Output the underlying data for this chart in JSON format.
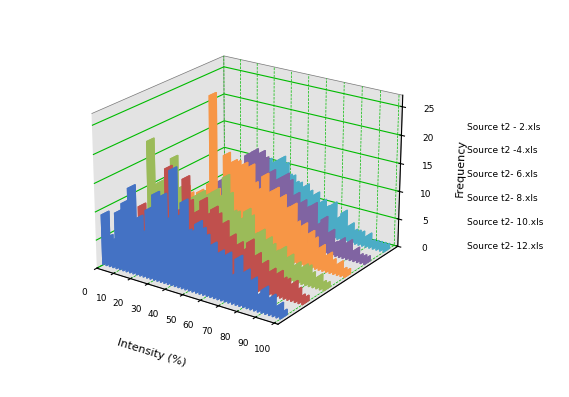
{
  "title": "",
  "xlabel": "Intensity (%)",
  "ylabel": "Frequency",
  "series_labels": [
    "Source t2 - 2.xls",
    "Source t2 -4.xls",
    "Source t2- 6.xls",
    "Source t2- 8.xls",
    "Source t2- 10.xls",
    "Source t2- 12.xls"
  ],
  "series_colors": [
    "#4472c4",
    "#c0504d",
    "#9bbb59",
    "#f79646",
    "#8064a2",
    "#4bacc6"
  ],
  "floor_line_colors": [
    "#4472c4",
    "#c0504d",
    "#9bbb59",
    "#f79646",
    "#8064a2",
    "#4bacc6"
  ],
  "x_bins": [
    0,
    1,
    2,
    3,
    4,
    5,
    6,
    7,
    8,
    9,
    10,
    11,
    12,
    13,
    14,
    15,
    16,
    17,
    18,
    19,
    20,
    21,
    22,
    23,
    24,
    25,
    26,
    27,
    28,
    29,
    30,
    31,
    32,
    33,
    34,
    35,
    36,
    37,
    38,
    39,
    40,
    41,
    42,
    43,
    44,
    45,
    46,
    47,
    48,
    49,
    50,
    51,
    52,
    53,
    54,
    55,
    56,
    57,
    58,
    59,
    60,
    61,
    62,
    63,
    64,
    65,
    66,
    67,
    68,
    69,
    70,
    71,
    72,
    73,
    74,
    75,
    76,
    77,
    78,
    79,
    80,
    81,
    82,
    83,
    84,
    85,
    86,
    87,
    88,
    89,
    90,
    91,
    92,
    93,
    94,
    95,
    96,
    97,
    98,
    99,
    100
  ],
  "zlim": [
    0,
    27
  ],
  "zticks": [
    0,
    5,
    10,
    15,
    20,
    25
  ],
  "xticks": [
    0,
    10,
    20,
    30,
    40,
    50,
    60,
    70,
    80,
    90,
    100
  ],
  "background_color": "#c8c8c8",
  "grid_color": "#00bb00",
  "elev": 22,
  "azim": -55,
  "data": {
    "s1": [
      9,
      0,
      5,
      0,
      4,
      0,
      5,
      0,
      10,
      0,
      8,
      0,
      12,
      0,
      9,
      0,
      15,
      0,
      9,
      0,
      10,
      0,
      7,
      0,
      8,
      0,
      12,
      0,
      8,
      0,
      15,
      0,
      11,
      0,
      15,
      0,
      11,
      0,
      8,
      0,
      20,
      0,
      12,
      0,
      11,
      0,
      15,
      0,
      10,
      0,
      10,
      0,
      9,
      0,
      12,
      0,
      11,
      0,
      10,
      0,
      8,
      0,
      9,
      0,
      6,
      0,
      8,
      0,
      5,
      0,
      8,
      0,
      4,
      0,
      5,
      0,
      8,
      0,
      4,
      0,
      6,
      0,
      3,
      0,
      5,
      0,
      2,
      0,
      3,
      0,
      4,
      0,
      2,
      0,
      3,
      0,
      1,
      0,
      2,
      0,
      1
    ],
    "s2": [
      5,
      0,
      4,
      0,
      1,
      0,
      3,
      0,
      9,
      0,
      4,
      0,
      5,
      0,
      7,
      0,
      9,
      0,
      8,
      0,
      7,
      0,
      4,
      0,
      17,
      0,
      10,
      0,
      9,
      0,
      10,
      0,
      9,
      0,
      16,
      0,
      12,
      0,
      10,
      0,
      10,
      0,
      11,
      0,
      13,
      0,
      9,
      0,
      11,
      0,
      12,
      0,
      11,
      0,
      9,
      0,
      10,
      0,
      7,
      0,
      8,
      0,
      5,
      0,
      7,
      0,
      6,
      0,
      4,
      0,
      8,
      0,
      3,
      0,
      6,
      0,
      4,
      0,
      5,
      0,
      3,
      0,
      4,
      0,
      2,
      0,
      4,
      0,
      3,
      0,
      3,
      0,
      1,
      0,
      3,
      0,
      2,
      0,
      1,
      0,
      1
    ],
    "s3": [
      18,
      0,
      10,
      0,
      5,
      0,
      11,
      0,
      10,
      0,
      3,
      0,
      8,
      0,
      16,
      0,
      9,
      0,
      11,
      0,
      7,
      0,
      6,
      0,
      9,
      0,
      10,
      0,
      9,
      0,
      11,
      0,
      10,
      0,
      11,
      0,
      11,
      0,
      12,
      0,
      11,
      0,
      10,
      0,
      15,
      0,
      12,
      0,
      9,
      0,
      9,
      0,
      8,
      0,
      7,
      0,
      10,
      0,
      9,
      0,
      6,
      0,
      5,
      0,
      7,
      0,
      4,
      0,
      6,
      0,
      5,
      0,
      4,
      0,
      3,
      0,
      5,
      0,
      3,
      0,
      4,
      0,
      2,
      0,
      3,
      0,
      2,
      0,
      3,
      0,
      3,
      0,
      2,
      0,
      1,
      0,
      2,
      0,
      1,
      0,
      1
    ],
    "s4": [
      1,
      0,
      4,
      0,
      3,
      0,
      2,
      0,
      8,
      0,
      7,
      0,
      3,
      0,
      5,
      0,
      8,
      0,
      7,
      0,
      8,
      0,
      10,
      0,
      26,
      0,
      9,
      0,
      8,
      0,
      8,
      0,
      16,
      0,
      11,
      0,
      15,
      0,
      15,
      0,
      9,
      0,
      15,
      0,
      12,
      0,
      15,
      0,
      12,
      0,
      11,
      0,
      9,
      0,
      14,
      0,
      11,
      0,
      9,
      0,
      12,
      0,
      8,
      0,
      11,
      0,
      9,
      0,
      9,
      0,
      10,
      0,
      7,
      0,
      5,
      0,
      7,
      0,
      4,
      0,
      6,
      0,
      5,
      0,
      3,
      0,
      4,
      0,
      2,
      0,
      3,
      0,
      2,
      0,
      1,
      0,
      2,
      0,
      1,
      0,
      1
    ],
    "s5": [
      2,
      0,
      1,
      0,
      2,
      0,
      3,
      0,
      4,
      0,
      5,
      0,
      6,
      0,
      7,
      0,
      8,
      0,
      6,
      0,
      8,
      0,
      7,
      0,
      10,
      0,
      10,
      0,
      8,
      0,
      10,
      0,
      14,
      0,
      13,
      0,
      15,
      0,
      11,
      0,
      15,
      0,
      14,
      0,
      11,
      0,
      12,
      0,
      9,
      0,
      11,
      0,
      9,
      0,
      12,
      0,
      11,
      0,
      8,
      0,
      9,
      0,
      6,
      0,
      8,
      0,
      7,
      0,
      5,
      0,
      8,
      0,
      4,
      0,
      5,
      0,
      6,
      0,
      3,
      0,
      4,
      0,
      2,
      0,
      2,
      0,
      3,
      0,
      2,
      0,
      3,
      0,
      1,
      0,
      2,
      0,
      1,
      0,
      1,
      0,
      1
    ],
    "s6": [
      1,
      0,
      1,
      0,
      2,
      0,
      2,
      0,
      3,
      0,
      3,
      0,
      4,
      0,
      5,
      0,
      6,
      0,
      5,
      0,
      7,
      0,
      6,
      0,
      9,
      0,
      9,
      0,
      7,
      0,
      8,
      0,
      11,
      0,
      10,
      0,
      11,
      0,
      9,
      0,
      12,
      0,
      11,
      0,
      9,
      0,
      9,
      0,
      8,
      0,
      8,
      0,
      7,
      0,
      8,
      0,
      7,
      0,
      6,
      0,
      7,
      0,
      5,
      0,
      6,
      0,
      5,
      0,
      4,
      0,
      6,
      0,
      3,
      0,
      4,
      0,
      5,
      0,
      2,
      0,
      3,
      0,
      2,
      0,
      2,
      0,
      2,
      0,
      1,
      0,
      2,
      0,
      1,
      0,
      1,
      0,
      1,
      0,
      1,
      0,
      1
    ]
  }
}
